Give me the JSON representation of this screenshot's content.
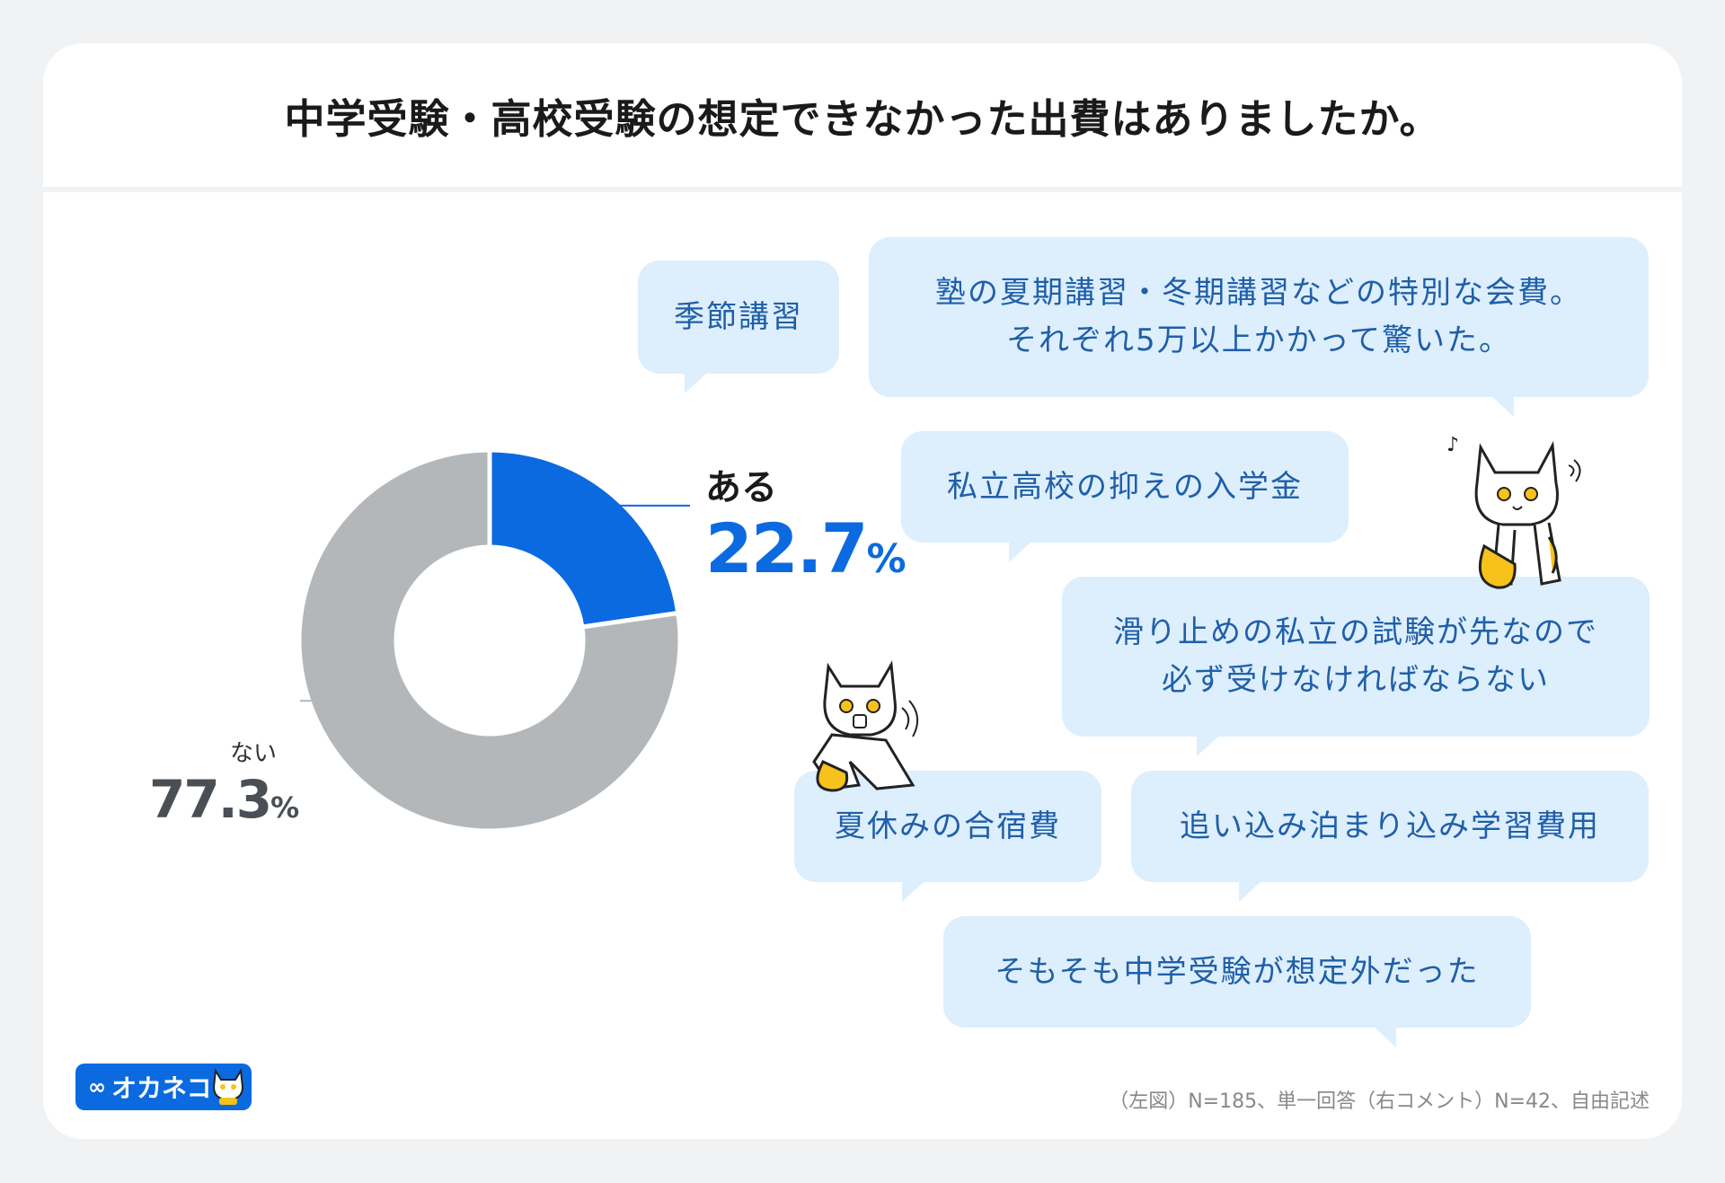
{
  "title": "中学受験・高校受験の想定できなかった出費はありましたか。",
  "chart_data": {
    "type": "pie",
    "variant": "donut",
    "slices": [
      {
        "label": "ある",
        "value": 22.7,
        "color": "#0b6ae0"
      },
      {
        "label": "ない",
        "value": 77.3,
        "color": "#b4b7ba"
      }
    ],
    "value_suffix": "%"
  },
  "labels": {
    "yes": {
      "label": "ある",
      "num": "22.7",
      "unit": "%"
    },
    "no": {
      "label": "ない",
      "num": "77.3",
      "unit": "%"
    }
  },
  "comments": [
    "季節講習",
    "塾の夏期講習・冬期講習などの特別な会費。",
    "それぞれ5万以上かかって驚いた。",
    "私立高校の抑えの入学金",
    "滑り止めの私立の試験が先なので",
    "必ず受けなければならない",
    "夏休みの合宿費",
    "追い込み泊まり込み学習費用",
    "そもそも中学受験が想定外だった"
  ],
  "footnote": "（左図）N=185、単一回答（右コメント）N=42、自由記述",
  "logo": {
    "text": "オカネコ",
    "icon": "infinity-icon"
  },
  "colors": {
    "accent": "#0b6ae0",
    "bubble": "#ddeefc",
    "bubble_text": "#1f5fa8"
  }
}
